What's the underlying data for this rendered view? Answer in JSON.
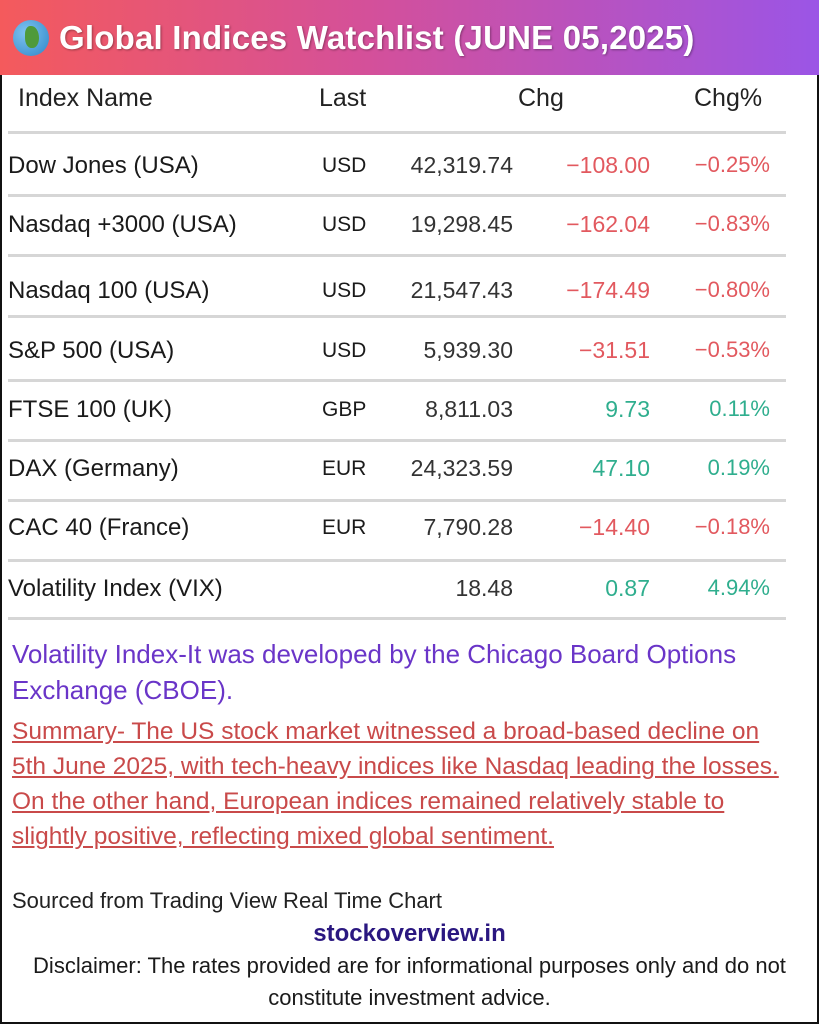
{
  "header": {
    "title": "Global Indices Watchlist (JUNE 05,2025)",
    "icon": "globe-icon",
    "gradient": [
      "#f45a5c",
      "#9b55e6"
    ]
  },
  "columns": {
    "name": "Index Name",
    "last": "Last",
    "chg": "Chg",
    "pct": "Chg%"
  },
  "colors": {
    "negative": "#e2595f",
    "positive": "#2fae8e"
  },
  "rows": [
    {
      "name": "Dow Jones (USA)",
      "currency": "USD",
      "last": "42,319.74",
      "chg": "−108.00",
      "pct": "−0.25%",
      "dir": "neg"
    },
    {
      "name": "Nasdaq +3000 (USA)",
      "currency": "USD",
      "last": "19,298.45",
      "chg": "−162.04",
      "pct": "−0.83%",
      "dir": "neg"
    },
    {
      "name": "Nasdaq 100 (USA)",
      "currency": "USD",
      "last": "21,547.43",
      "chg": "−174.49",
      "pct": "−0.80%",
      "dir": "neg"
    },
    {
      "name": "S&P 500 (USA)",
      "currency": "USD",
      "last": "5,939.30",
      "chg": "−31.51",
      "pct": "−0.53%",
      "dir": "neg"
    },
    {
      "name": "FTSE 100 (UK)",
      "currency": "GBP",
      "last": "8,811.03",
      "chg": "9.73",
      "pct": "0.11%",
      "dir": "pos"
    },
    {
      "name": "DAX (Germany)",
      "currency": "EUR",
      "last": "24,323.59",
      "chg": "47.10",
      "pct": "0.19%",
      "dir": "pos"
    },
    {
      "name": "CAC 40 (France)",
      "currency": "EUR",
      "last": "7,790.28",
      "chg": "−14.40",
      "pct": "−0.18%",
      "dir": "neg"
    },
    {
      "name": "Volatility Index (VIX)",
      "currency": "",
      "last": "18.48",
      "chg": "0.87",
      "pct": "4.94%",
      "dir": "pos"
    }
  ],
  "note": "Volatility Index-It was developed by the Chicago Board Options Exchange (CBOE).",
  "summary": "Summary- The US stock market witnessed a broad-based decline on 5th June 2025, with tech-heavy indices like Nasdaq leading the losses. On the other hand, European indices remained relatively stable to slightly positive, reflecting mixed global sentiment.",
  "source": "Sourced from Trading View Real Time Chart",
  "site": "stockoverview.in",
  "disclaimer": "Disclaimer: The rates provided are for informational purposes only and do not constitute investment advice."
}
